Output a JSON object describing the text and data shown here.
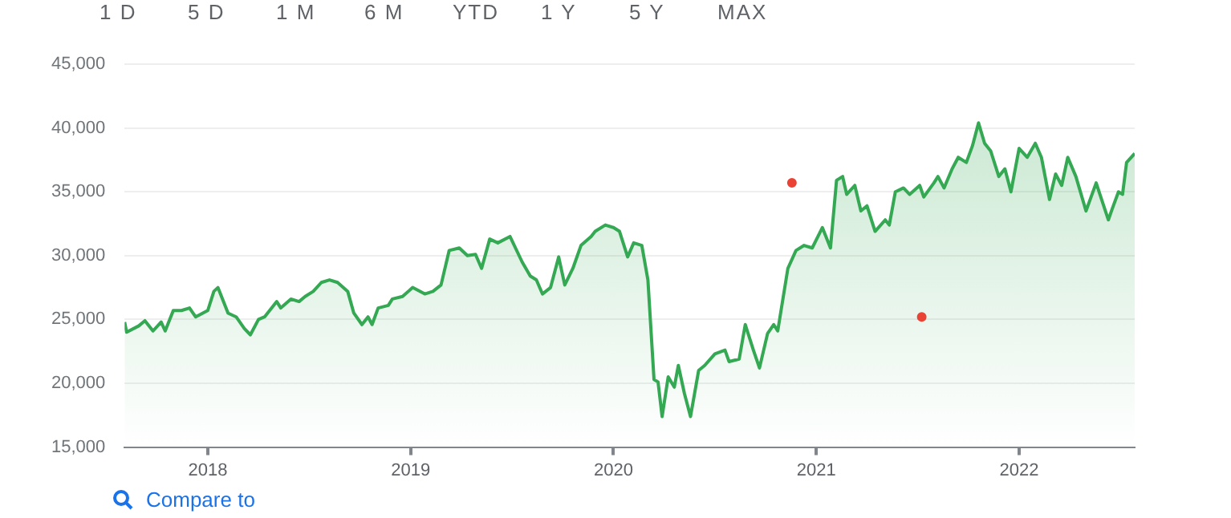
{
  "chart_data": {
    "type": "area",
    "annotations": [
      "1 D",
      "5 D",
      "1 M",
      "6 M",
      "YTD",
      "1 Y",
      "5 Y",
      "MAX",
      "Compare to"
    ],
    "xlim": [
      2017.59,
      2022.57
    ],
    "xticks": [
      2018,
      2019,
      2020,
      2021,
      2022
    ],
    "ylim": [
      15000,
      45000
    ],
    "yticks": [
      {
        "value": 15000,
        "label": "15,000"
      },
      {
        "value": 20000,
        "label": "20,000"
      },
      {
        "value": 25000,
        "label": "25,000"
      },
      {
        "value": 30000,
        "label": "30,000"
      },
      {
        "value": 35000,
        "label": "35,000"
      },
      {
        "value": 40000,
        "label": "40,000"
      },
      {
        "value": 45000,
        "label": "45,000"
      }
    ],
    "grid": "y",
    "legend": false,
    "series": [
      {
        "color": "#34a853",
        "x": [
          2017.59,
          2017.6,
          2017.66,
          2017.69,
          2017.73,
          2017.77,
          2017.79,
          2017.83,
          2017.87,
          2017.91,
          2017.94,
          2018.0,
          2018.03,
          2018.05,
          2018.1,
          2018.14,
          2018.18,
          2018.21,
          2018.25,
          2018.28,
          2018.34,
          2018.36,
          2018.41,
          2018.45,
          2018.48,
          2018.52,
          2018.56,
          2018.6,
          2018.64,
          2018.69,
          2018.72,
          2018.76,
          2018.79,
          2018.81,
          2018.84,
          2018.89,
          2018.91,
          2018.96,
          2019.01,
          2019.07,
          2019.11,
          2019.15,
          2019.19,
          2019.24,
          2019.28,
          2019.32,
          2019.35,
          2019.39,
          2019.43,
          2019.49,
          2019.55,
          2019.59,
          2019.62,
          2019.65,
          2019.69,
          2019.73,
          2019.76,
          2019.8,
          2019.84,
          2019.89,
          2019.91,
          2019.96,
          2020.0,
          2020.03,
          2020.07,
          2020.1,
          2020.14,
          2020.17,
          2020.2,
          2020.22,
          2020.24,
          2020.27,
          2020.3,
          2020.32,
          2020.35,
          2020.38,
          2020.42,
          2020.45,
          2020.5,
          2020.55,
          2020.57,
          2020.62,
          2020.65,
          2020.69,
          2020.72,
          2020.76,
          2020.79,
          2020.81,
          2020.86,
          2020.9,
          2020.94,
          2020.98,
          2021.03,
          2021.07,
          2021.1,
          2021.13,
          2021.15,
          2021.19,
          2021.22,
          2021.25,
          2021.29,
          2021.34,
          2021.36,
          2021.39,
          2021.43,
          2021.46,
          2021.51,
          2021.53,
          2021.58,
          2021.6,
          2021.63,
          2021.67,
          2021.7,
          2021.74,
          2021.77,
          2021.8,
          2021.83,
          2021.86,
          2021.9,
          2021.93,
          2021.96,
          2022.0,
          2022.04,
          2022.08,
          2022.11,
          2022.15,
          2022.18,
          2022.21,
          2022.24,
          2022.28,
          2022.33,
          2022.38,
          2022.44,
          2022.46,
          2022.49,
          2022.51,
          2022.53,
          2022.57
        ],
        "values": [
          24800,
          24000,
          24500,
          24900,
          24100,
          24800,
          24100,
          25700,
          25700,
          25900,
          25200,
          25700,
          27200,
          27500,
          25500,
          25200,
          24300,
          23800,
          25000,
          25200,
          26400,
          25900,
          26600,
          26400,
          26800,
          27200,
          27900,
          28100,
          27900,
          27200,
          25500,
          24600,
          25200,
          24600,
          25900,
          26100,
          26600,
          26800,
          27500,
          27000,
          27200,
          27700,
          30400,
          30600,
          30000,
          30100,
          29000,
          31300,
          31000,
          31500,
          29500,
          28400,
          28100,
          27000,
          27500,
          29900,
          27700,
          29000,
          30800,
          31500,
          31900,
          32400,
          32200,
          31900,
          29900,
          31000,
          30800,
          28100,
          20300,
          20100,
          17400,
          20500,
          19700,
          21400,
          19200,
          17400,
          21000,
          21400,
          22300,
          22600,
          21700,
          21900,
          24600,
          22600,
          21200,
          23900,
          24600,
          24100,
          29000,
          30400,
          30800,
          30600,
          32200,
          30600,
          35900,
          36200,
          34800,
          35500,
          33500,
          33900,
          31900,
          32800,
          32400,
          35000,
          35300,
          34800,
          35500,
          34600,
          35700,
          36200,
          35300,
          36800,
          37700,
          37300,
          38600,
          40400,
          38800,
          38200,
          36200,
          36800,
          35000,
          38400,
          37700,
          38800,
          37700,
          34400,
          36400,
          35500,
          37700,
          36200,
          33500,
          35700,
          32800,
          33700,
          35000,
          34800,
          37300,
          38000
        ]
      },
      {
        "type": "scatter",
        "color": "#ea4335",
        "x": [
          2020.88,
          2021.52
        ],
        "values": [
          35700,
          25200
        ]
      }
    ]
  }
}
